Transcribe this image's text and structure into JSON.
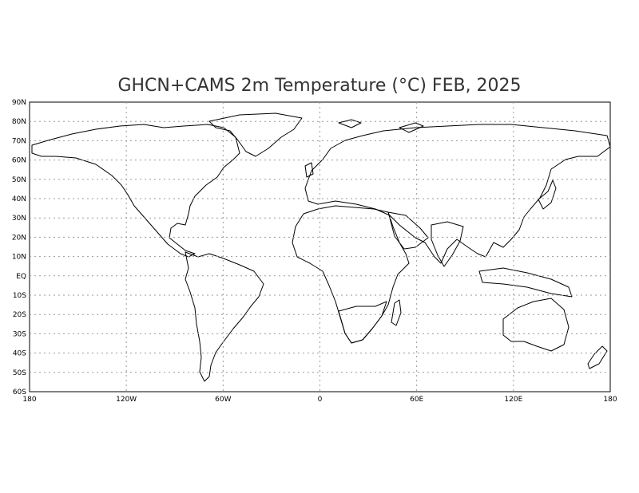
{
  "title": "GHCN+CAMS 2m Temperature (°C) FEB, 2025",
  "map": {
    "projection": "equirectangular",
    "lon_range": [
      -180,
      180
    ],
    "lat_range": [
      -60,
      90
    ],
    "grid": true,
    "lon_ticks": [
      {
        "value": -180,
        "label": "180"
      },
      {
        "value": -120,
        "label": "120W"
      },
      {
        "value": -60,
        "label": "60W"
      },
      {
        "value": 0,
        "label": "0"
      },
      {
        "value": 60,
        "label": "60E"
      },
      {
        "value": 120,
        "label": "120E"
      },
      {
        "value": 180,
        "label": "180"
      }
    ],
    "lat_ticks": [
      {
        "value": 90,
        "label": "90N"
      },
      {
        "value": 80,
        "label": "80N"
      },
      {
        "value": 70,
        "label": "70N"
      },
      {
        "value": 60,
        "label": "60N"
      },
      {
        "value": 50,
        "label": "50N"
      },
      {
        "value": 40,
        "label": "40N"
      },
      {
        "value": 30,
        "label": "30N"
      },
      {
        "value": 20,
        "label": "20N"
      },
      {
        "value": 10,
        "label": "10N"
      },
      {
        "value": 0,
        "label": "EQ"
      },
      {
        "value": -10,
        "label": "10S"
      },
      {
        "value": -20,
        "label": "20S"
      },
      {
        "value": -30,
        "label": "30S"
      },
      {
        "value": -40,
        "label": "40S"
      },
      {
        "value": -50,
        "label": "50S"
      },
      {
        "value": -60,
        "label": "60S"
      }
    ],
    "colors": {
      "very_cold": "#2f73dc",
      "cold": "#5a9ae6",
      "cool": "#a6d4f2",
      "mild": "#fde9a8",
      "warm": "#f6a94a",
      "hot": "#dc3b1a",
      "very_hot": "#b41f12",
      "no_data": "#ffffff"
    }
  }
}
